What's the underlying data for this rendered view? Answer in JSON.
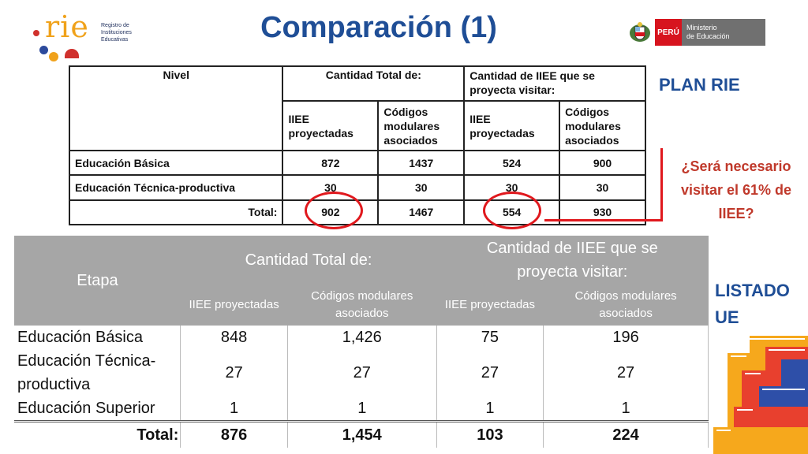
{
  "logo": {
    "word": "rie",
    "subtitle_lines": [
      "Registro de",
      "Instituciones",
      "Educativas"
    ]
  },
  "title": "Comparación (1)",
  "ministry": {
    "country": "PERÚ",
    "name_lines": [
      "Ministerio",
      "de Educación"
    ]
  },
  "scan_table": {
    "headers": {
      "nivel": "Nivel",
      "total_group": "Cantidad Total de:",
      "visit_group": "Cantidad de IIEE que se proyecta visitar:",
      "col1": "IIEE proyectadas",
      "col2": "Códigos modulares asociados",
      "col3": "IIEE proyectadas",
      "col4": "Códigos modulares asociados"
    },
    "rows": [
      {
        "label": "Educación Básica",
        "v1": "872",
        "v2": "1437",
        "v3": "524",
        "v4": "900"
      },
      {
        "label": "Educación Técnica-productiva",
        "v1": "30",
        "v2": "30",
        "v3": "30",
        "v4": "30"
      },
      {
        "label": "Total:",
        "v1": "902",
        "v2": "1467",
        "v3": "554",
        "v4": "930"
      }
    ]
  },
  "plan_label": "PLAN RIE",
  "question": "¿Será necesario visitar el 61% de IIEE?",
  "listado_label": "LISTADO UE",
  "list_table": {
    "headers": {
      "etapa": "Etapa",
      "total_group": "Cantidad Total de:",
      "visit_group": "Cantidad de IIEE que se proyecta visitar:",
      "col1": "IIEE proyectadas",
      "col2": "Códigos modulares asociados",
      "col3": "IIEE proyectadas",
      "col4": "Códigos modulares asociados"
    },
    "rows": [
      {
        "label": "Educación Básica",
        "v1": "848",
        "v2": "1,426",
        "v3": "75",
        "v4": "196"
      },
      {
        "label": "Educación Técnica-productiva",
        "v1": "27",
        "v2": "27",
        "v3": "27",
        "v4": "27"
      },
      {
        "label": "Educación Superior",
        "v1": "1",
        "v2": "1",
        "v3": "1",
        "v4": "1"
      }
    ],
    "total": {
      "label": "Total:",
      "v1": "876",
      "v2": "1,454",
      "v3": "103",
      "v4": "224"
    }
  },
  "colors": {
    "title_blue": "#1f4e96",
    "accent_red": "#e0181d",
    "header_gray": "#a6a6a6",
    "logo_orange": "#f0a21b"
  }
}
